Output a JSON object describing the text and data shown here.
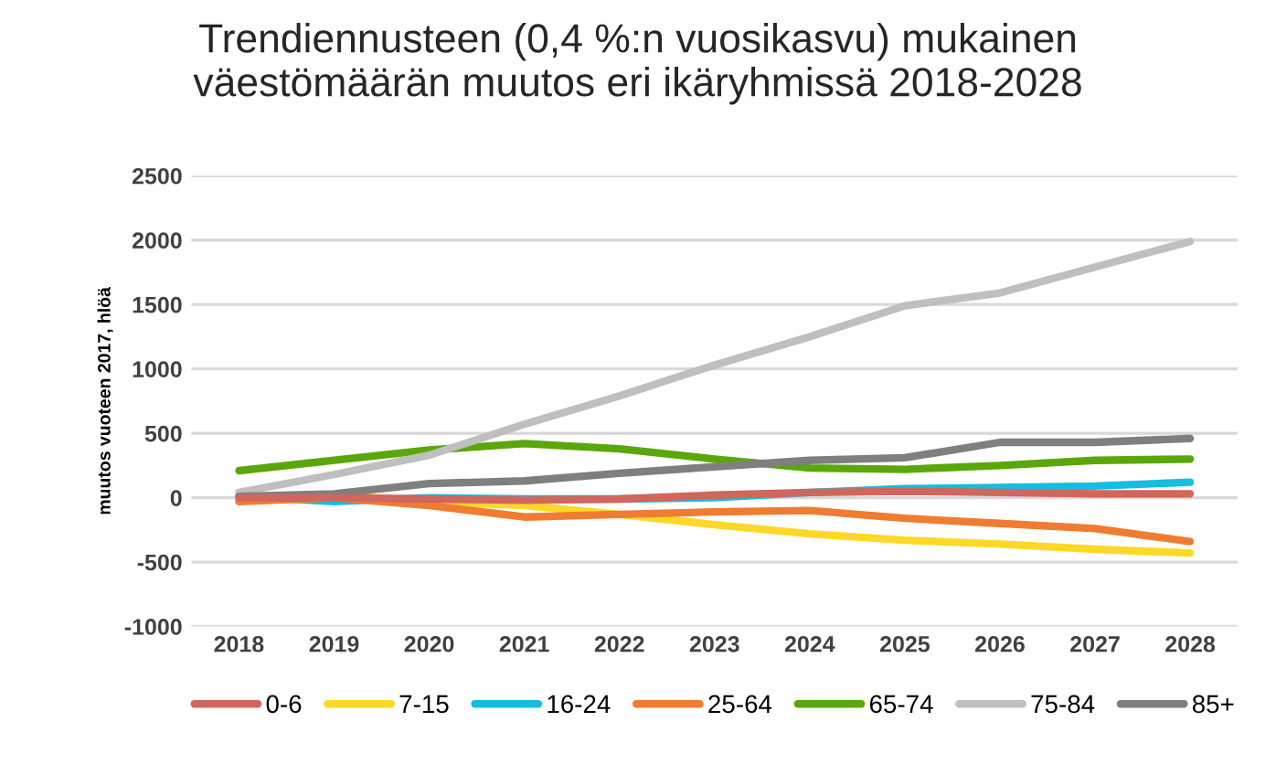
{
  "chart_data": {
    "type": "line",
    "title": "Trendiennusteen (0,4 %:n vuosikasvu) mukainen\nväestömäärän muutos eri ikäryhmissä 2018-2028",
    "ylabel": "muutos vuoteen 2017, hlöä",
    "categories": [
      "2018",
      "2019",
      "2020",
      "2021",
      "2022",
      "2023",
      "2024",
      "2025",
      "2026",
      "2027",
      "2028"
    ],
    "series": [
      {
        "name": "0-6",
        "color": "#d0665c",
        "values": [
          0,
          0,
          -10,
          -20,
          -10,
          20,
          40,
          50,
          40,
          30,
          30
        ]
      },
      {
        "name": "7-15",
        "color": "#fdd827",
        "values": [
          0,
          20,
          -30,
          -60,
          -130,
          -210,
          -280,
          -330,
          -360,
          -400,
          -430
        ]
      },
      {
        "name": "16-24",
        "color": "#16bde0",
        "values": [
          10,
          -30,
          0,
          -10,
          -10,
          0,
          40,
          70,
          80,
          90,
          120
        ]
      },
      {
        "name": "25-64",
        "color": "#f07c31",
        "values": [
          -30,
          0,
          -60,
          -150,
          -130,
          -110,
          -100,
          -160,
          -200,
          -240,
          -340
        ]
      },
      {
        "name": "65-74",
        "color": "#5aa70a",
        "values": [
          210,
          290,
          370,
          420,
          380,
          300,
          230,
          220,
          250,
          290,
          300
        ]
      },
      {
        "name": "75-84",
        "color": "#bfbfbf",
        "values": [
          40,
          180,
          330,
          570,
          790,
          1030,
          1250,
          1490,
          1590,
          1790,
          1990
        ]
      },
      {
        "name": "85+",
        "color": "#7f7f7f",
        "values": [
          10,
          30,
          110,
          130,
          190,
          240,
          290,
          310,
          430,
          430,
          460
        ]
      }
    ],
    "ylim": [
      -1000,
      2500
    ],
    "yticks": [
      -1000,
      -500,
      0,
      500,
      1000,
      1500,
      2000,
      2500
    ],
    "grid": "y",
    "legend": "bottom",
    "marker": "none",
    "line_style": "solid"
  }
}
